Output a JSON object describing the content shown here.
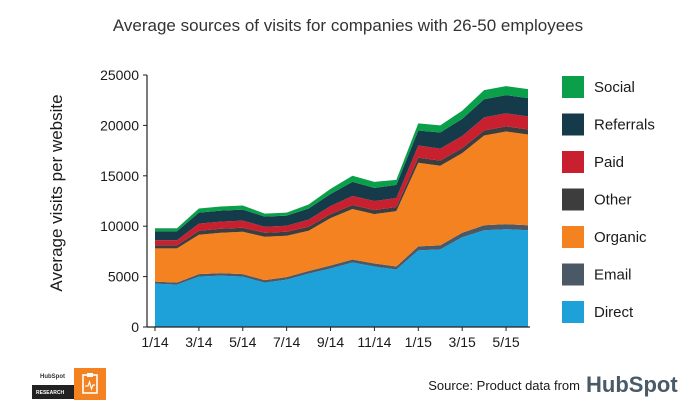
{
  "chart_data": {
    "type": "area",
    "stacked": true,
    "title": "Average sources of visits for companies with 26-50 employees",
    "ylabel": "Average visits per website",
    "xlabel": "",
    "ylim": [
      0,
      25000
    ],
    "yticks": [
      0,
      5000,
      10000,
      15000,
      20000,
      25000
    ],
    "x": [
      "1/14",
      "2/14",
      "3/14",
      "4/14",
      "5/14",
      "6/14",
      "7/14",
      "8/14",
      "9/14",
      "10/14",
      "11/14",
      "12/14",
      "1/15",
      "2/15",
      "3/15",
      "4/15",
      "5/15",
      "6/15"
    ],
    "xtick_labels": [
      "1/14",
      "3/14",
      "5/14",
      "7/14",
      "9/14",
      "11/14",
      "1/15",
      "3/15",
      "5/15"
    ],
    "legend_position": "right",
    "series": [
      {
        "name": "Direct",
        "color": "#1ea0d9",
        "values": [
          4300,
          4200,
          5000,
          5100,
          5000,
          4400,
          4700,
          5300,
          5800,
          6400,
          6000,
          5700,
          7600,
          7700,
          8900,
          9600,
          9700,
          9600
        ]
      },
      {
        "name": "Email",
        "color": "#4b5966",
        "values": [
          200,
          200,
          250,
          250,
          250,
          250,
          250,
          250,
          300,
          300,
          300,
          300,
          400,
          400,
          450,
          500,
          500,
          500
        ]
      },
      {
        "name": "Organic",
        "color": "#f58220",
        "values": [
          3300,
          3400,
          3900,
          4000,
          4200,
          4300,
          4100,
          4000,
          4700,
          5000,
          4900,
          5500,
          8300,
          7900,
          7900,
          8900,
          9200,
          9000
        ]
      },
      {
        "name": "Other",
        "color": "#3d3d3d",
        "values": [
          300,
          300,
          400,
          400,
          400,
          400,
          400,
          400,
          400,
          400,
          400,
          400,
          500,
          500,
          500,
          500,
          500,
          500
        ]
      },
      {
        "name": "Paid",
        "color": "#c8202f",
        "values": [
          500,
          500,
          700,
          700,
          700,
          600,
          600,
          700,
          800,
          900,
          900,
          900,
          1200,
          1200,
          1200,
          1300,
          1300,
          1300
        ]
      },
      {
        "name": "Referrals",
        "color": "#153a4a",
        "values": [
          900,
          900,
          1100,
          1100,
          1100,
          1000,
          1000,
          1100,
          1200,
          1400,
          1300,
          1300,
          1500,
          1600,
          1700,
          1800,
          1800,
          1800
        ]
      },
      {
        "name": "Social",
        "color": "#0aa04a",
        "values": [
          300,
          300,
          400,
          400,
          400,
          300,
          300,
          400,
          500,
          600,
          600,
          500,
          700,
          700,
          800,
          900,
          900,
          900
        ]
      }
    ],
    "legend_order": [
      "Social",
      "Referrals",
      "Paid",
      "Other",
      "Organic",
      "Email",
      "Direct"
    ]
  },
  "source": {
    "text": "Source: Product data from",
    "brand": "HubSpot"
  },
  "badge": {
    "brand": "HubSpot",
    "label": "RESEARCH"
  }
}
